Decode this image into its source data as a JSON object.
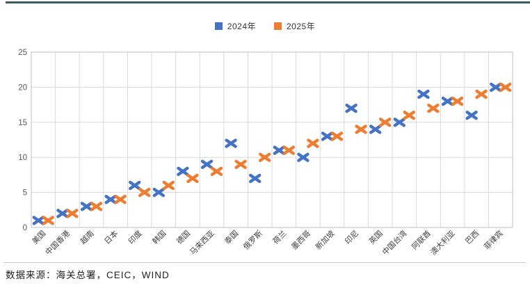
{
  "page": {
    "source_note": "数据来源：海关总署，CEIC，WIND"
  },
  "legend": {
    "items": [
      {
        "label": "2024年",
        "color": "#4472c4"
      },
      {
        "label": "2025年",
        "color": "#ed7d31"
      }
    ]
  },
  "chart_data": {
    "type": "scatter",
    "marker": "x",
    "title": "",
    "xlabel": "",
    "ylabel": "",
    "categories": [
      "美国",
      "中国香港",
      "越南",
      "日本",
      "印度",
      "韩国",
      "德国",
      "马来西亚",
      "泰国",
      "俄罗斯",
      "荷兰",
      "墨西哥",
      "新加坡",
      "印尼",
      "英国",
      "中国台湾",
      "阿联酋",
      "澳大利亚",
      "巴西",
      "菲律宾"
    ],
    "series": [
      {
        "name": "2024年",
        "color": "#4472c4",
        "values": [
          1,
          2,
          3,
          4,
          6,
          5,
          8,
          9,
          12,
          7,
          11,
          10,
          13,
          17,
          14,
          15,
          19,
          18,
          16,
          20
        ]
      },
      {
        "name": "2025年",
        "color": "#ed7d31",
        "values": [
          1,
          2,
          3,
          4,
          5,
          6,
          7,
          8,
          9,
          10,
          11,
          12,
          13,
          14,
          15,
          16,
          17,
          18,
          19,
          20
        ]
      }
    ],
    "ylim": [
      0,
      25
    ],
    "yticks": [
      0,
      5,
      10,
      15,
      20,
      25
    ],
    "grid": true,
    "legend_position": "top-center",
    "colors": {
      "grid_line": "#d9d9d9",
      "plot_border": "#bfbfbf",
      "y_tick_label": "#595959",
      "x_tick_label": "#404040"
    }
  }
}
